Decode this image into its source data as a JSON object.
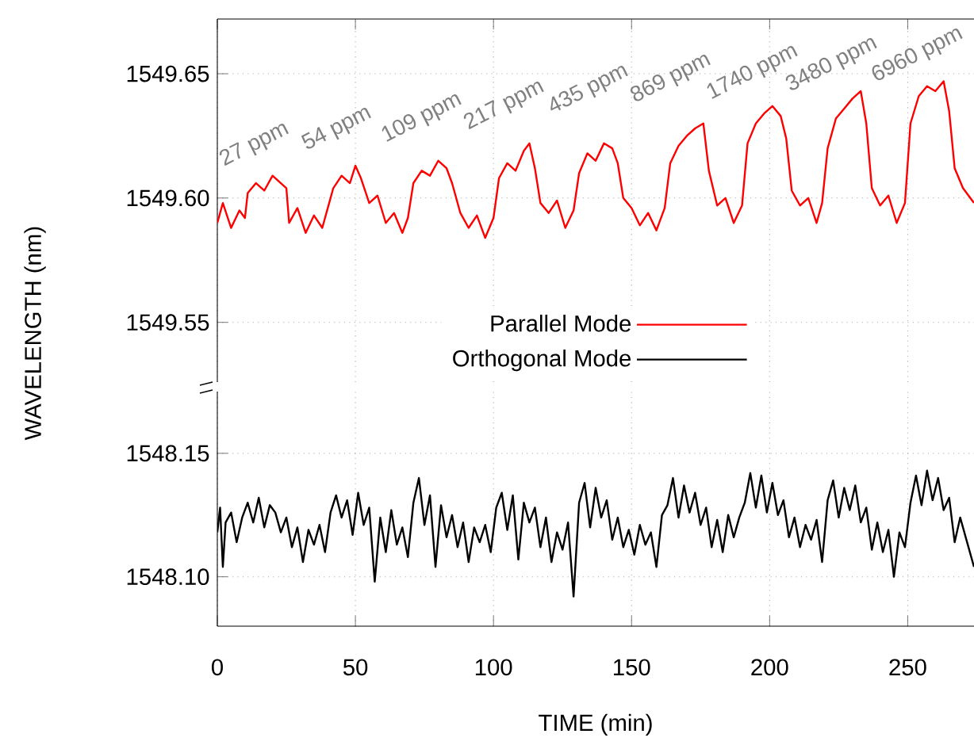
{
  "chart_data": [
    {
      "type": "line",
      "ylabel": "WAVELENGTH (nm)",
      "tick_labels": "y",
      "grid": true,
      "legend": "bottom",
      "line_style": "solid",
      "xlim": [
        0,
        274
      ],
      "xticks": [
        0,
        50,
        100,
        150,
        200,
        250
      ],
      "ylim": [
        1549.526,
        1549.672
      ],
      "yticks": [
        {
          "value": 1549.55,
          "label": "1549.55"
        },
        {
          "value": 1549.6,
          "label": "1549.60"
        },
        {
          "value": 1549.65,
          "label": "1549.65"
        }
      ],
      "annotations": [
        "27 ppm",
        "54 ppm",
        "109 ppm",
        "217 ppm",
        "435 ppm",
        "869 ppm",
        "1740 ppm",
        "3480 ppm",
        "6960 ppm"
      ],
      "series": [
        {
          "name": "Parallel Mode",
          "color": "#ff0000",
          "x": [
            0,
            2,
            5,
            8,
            10,
            11,
            14,
            17,
            20,
            23,
            25,
            26,
            29,
            32,
            35,
            38,
            40,
            42,
            45,
            48,
            50,
            52,
            55,
            58,
            61,
            64,
            67,
            69,
            71,
            74,
            77,
            80,
            83,
            85,
            88,
            91,
            94,
            97,
            100,
            102,
            105,
            108,
            111,
            113,
            115,
            117,
            120,
            123,
            126,
            129,
            131,
            134,
            137,
            140,
            143,
            145,
            147,
            150,
            153,
            156,
            159,
            162,
            164,
            167,
            170,
            173,
            176,
            178,
            181,
            184,
            187,
            190,
            192,
            195,
            198,
            201,
            204,
            206,
            208,
            211,
            214,
            217,
            219,
            221,
            224,
            227,
            230,
            233,
            235,
            237,
            240,
            243,
            246,
            249,
            251,
            254,
            257,
            260,
            263,
            265,
            267,
            270,
            274
          ],
          "values": [
            1549.59,
            1549.598,
            1549.588,
            1549.595,
            1549.592,
            1549.602,
            1549.606,
            1549.603,
            1549.609,
            1549.606,
            1549.604,
            1549.59,
            1549.596,
            1549.586,
            1549.593,
            1549.588,
            1549.596,
            1549.604,
            1549.609,
            1549.606,
            1549.613,
            1549.608,
            1549.598,
            1549.601,
            1549.59,
            1549.594,
            1549.586,
            1549.592,
            1549.606,
            1549.611,
            1549.609,
            1549.615,
            1549.612,
            1549.606,
            1549.594,
            1549.588,
            1549.593,
            1549.584,
            1549.592,
            1549.608,
            1549.614,
            1549.611,
            1549.619,
            1549.622,
            1549.612,
            1549.598,
            1549.594,
            1549.599,
            1549.588,
            1549.595,
            1549.61,
            1549.618,
            1549.615,
            1549.622,
            1549.62,
            1549.614,
            1549.6,
            1549.596,
            1549.589,
            1549.594,
            1549.587,
            1549.596,
            1549.614,
            1549.621,
            1549.625,
            1549.628,
            1549.63,
            1549.611,
            1549.597,
            1549.6,
            1549.59,
            1549.597,
            1549.622,
            1549.63,
            1549.634,
            1549.637,
            1549.633,
            1549.624,
            1549.603,
            1549.597,
            1549.6,
            1549.59,
            1549.598,
            1549.62,
            1549.632,
            1549.636,
            1549.64,
            1549.643,
            1549.63,
            1549.604,
            1549.597,
            1549.601,
            1549.59,
            1549.598,
            1549.63,
            1549.641,
            1549.645,
            1549.643,
            1549.647,
            1549.635,
            1549.612,
            1549.604,
            1549.598
          ]
        }
      ]
    },
    {
      "type": "line",
      "xlabel": "TIME (min)",
      "grid": true,
      "line_style": "solid",
      "xlim": [
        0,
        274
      ],
      "xticks": [
        0,
        50,
        100,
        150,
        200,
        250
      ],
      "ylim": [
        1548.08,
        1548.175
      ],
      "yticks": [
        {
          "value": 1548.1,
          "label": "1548.10"
        },
        {
          "value": 1548.15,
          "label": "1548.15"
        }
      ],
      "series": [
        {
          "name": "Orthogonal Mode",
          "color": "#000000",
          "x": [
            0,
            1,
            2,
            3,
            5,
            7,
            9,
            11,
            13,
            15,
            17,
            19,
            21,
            23,
            25,
            27,
            29,
            31,
            33,
            35,
            37,
            39,
            41,
            43,
            45,
            47,
            49,
            51,
            53,
            55,
            57,
            59,
            61,
            63,
            65,
            67,
            69,
            71,
            73,
            75,
            77,
            79,
            81,
            83,
            85,
            87,
            89,
            91,
            93,
            95,
            97,
            99,
            101,
            103,
            105,
            107,
            109,
            111,
            113,
            115,
            117,
            119,
            121,
            123,
            125,
            127,
            129,
            131,
            133,
            135,
            137,
            139,
            141,
            143,
            145,
            147,
            149,
            151,
            153,
            155,
            157,
            159,
            161,
            163,
            165,
            167,
            169,
            171,
            173,
            175,
            177,
            179,
            181,
            183,
            185,
            187,
            189,
            191,
            193,
            195,
            197,
            199,
            201,
            203,
            205,
            207,
            209,
            211,
            213,
            215,
            217,
            219,
            221,
            223,
            225,
            227,
            229,
            231,
            233,
            235,
            237,
            239,
            241,
            243,
            245,
            247,
            249,
            251,
            253,
            255,
            257,
            259,
            261,
            263,
            265,
            267,
            269,
            271,
            274
          ],
          "values": [
            1548.118,
            1548.128,
            1548.104,
            1548.122,
            1548.126,
            1548.114,
            1548.124,
            1548.13,
            1548.122,
            1548.132,
            1548.12,
            1548.129,
            1548.126,
            1548.118,
            1548.124,
            1548.112,
            1548.12,
            1548.106,
            1548.119,
            1548.113,
            1548.121,
            1548.11,
            1548.126,
            1548.133,
            1548.124,
            1548.131,
            1548.117,
            1548.134,
            1548.121,
            1548.128,
            1548.098,
            1548.124,
            1548.11,
            1548.127,
            1548.113,
            1548.12,
            1548.108,
            1548.13,
            1548.14,
            1548.121,
            1548.133,
            1548.104,
            1548.129,
            1548.116,
            1548.125,
            1548.112,
            1548.122,
            1548.106,
            1548.12,
            1548.114,
            1548.121,
            1548.11,
            1548.128,
            1548.134,
            1548.119,
            1548.133,
            1548.107,
            1548.13,
            1548.122,
            1548.128,
            1548.112,
            1548.124,
            1548.106,
            1548.118,
            1548.111,
            1548.122,
            1548.092,
            1548.13,
            1548.138,
            1548.12,
            1548.136,
            1548.124,
            1548.131,
            1548.115,
            1548.124,
            1548.112,
            1548.119,
            1548.109,
            1548.121,
            1548.113,
            1548.118,
            1548.104,
            1548.125,
            1548.129,
            1548.14,
            1548.124,
            1548.137,
            1548.126,
            1548.134,
            1548.121,
            1548.128,
            1548.112,
            1548.123,
            1548.11,
            1548.125,
            1548.116,
            1548.124,
            1548.13,
            1548.142,
            1548.128,
            1548.141,
            1548.126,
            1548.138,
            1548.125,
            1548.131,
            1548.116,
            1548.124,
            1548.112,
            1548.121,
            1548.115,
            1548.123,
            1548.106,
            1548.131,
            1548.139,
            1548.124,
            1548.136,
            1548.127,
            1548.137,
            1548.122,
            1548.128,
            1548.111,
            1548.122,
            1548.11,
            1548.119,
            1548.1,
            1548.118,
            1548.112,
            1548.13,
            1548.141,
            1548.129,
            1548.143,
            1548.131,
            1548.14,
            1548.127,
            1548.132,
            1548.114,
            1548.124,
            1548.116,
            1548.104
          ]
        }
      ]
    }
  ]
}
